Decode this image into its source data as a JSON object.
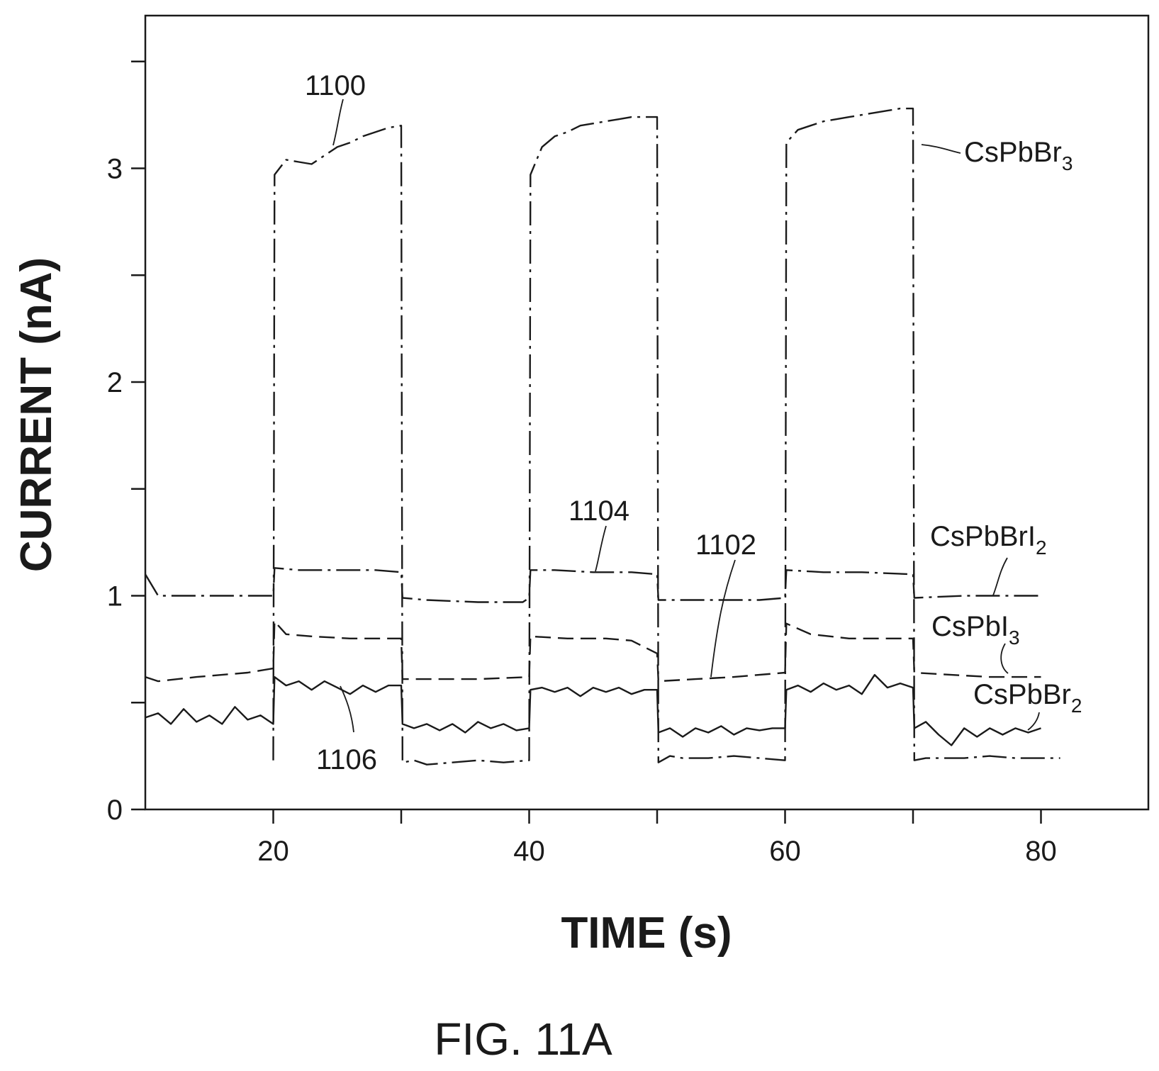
{
  "chart_data": {
    "type": "line",
    "xlabel": "TIME (s)",
    "ylabel": "CURRENT (nA)",
    "xlim": [
      10,
      88
    ],
    "ylim": [
      0,
      3.7
    ],
    "xticks": [
      20,
      40,
      60,
      80
    ],
    "xticks_minor": [
      30,
      50,
      70
    ],
    "yticks": [
      0,
      1,
      2,
      3
    ],
    "yticks_minor": [
      0.5,
      1.5,
      2.5,
      3.5
    ],
    "grid": false,
    "figure_label": "FIG. 11A",
    "reference_labels": [
      "1100",
      "1104",
      "1102",
      "1106"
    ],
    "series": [
      {
        "name": "CsPbBr3",
        "label_base": "CsPbBr",
        "label_sub": "3",
        "reference": "1100",
        "dash": "dash-dot",
        "x": [
          20,
          20.1,
          21,
          22,
          23,
          24,
          25,
          26,
          27,
          28,
          29,
          30,
          30.1,
          31,
          32,
          34,
          36,
          38,
          40,
          40.1,
          41,
          42,
          43,
          44,
          45,
          46,
          47,
          48,
          49,
          50,
          50.1,
          51,
          52,
          54,
          56,
          58,
          60,
          60.1,
          61,
          62,
          63,
          64,
          65,
          66,
          67,
          68,
          69,
          70,
          70.1,
          71,
          72,
          74,
          76,
          78,
          80,
          81.5
        ],
        "values": [
          0.23,
          2.97,
          3.04,
          3.03,
          3.02,
          3.06,
          3.1,
          3.12,
          3.15,
          3.17,
          3.19,
          3.2,
          0.22,
          0.23,
          0.21,
          0.22,
          0.23,
          0.22,
          0.23,
          2.97,
          3.1,
          3.15,
          3.17,
          3.2,
          3.21,
          3.22,
          3.23,
          3.24,
          3.24,
          3.24,
          0.22,
          0.25,
          0.24,
          0.24,
          0.25,
          0.24,
          0.23,
          3.12,
          3.18,
          3.2,
          3.22,
          3.23,
          3.24,
          3.25,
          3.26,
          3.27,
          3.28,
          3.28,
          0.23,
          0.24,
          0.24,
          0.24,
          0.25,
          0.24,
          0.24,
          0.24
        ]
      },
      {
        "name": "CsPbBrI2",
        "label_base": "CsPbBrI",
        "label_sub": "2",
        "reference": "1104",
        "dash": "dash-dot",
        "x": [
          10,
          11,
          14,
          18,
          20,
          20.1,
          22,
          25,
          28,
          30,
          30.1,
          32,
          36,
          39.5,
          40,
          40.1,
          42,
          45,
          48,
          50,
          50.1,
          54,
          58,
          60,
          60.1,
          63,
          66,
          70,
          70.1,
          74,
          80
        ],
        "values": [
          1.1,
          1.0,
          1.0,
          1.0,
          1.0,
          1.13,
          1.12,
          1.12,
          1.12,
          1.11,
          0.99,
          0.98,
          0.97,
          0.97,
          0.99,
          1.12,
          1.12,
          1.11,
          1.11,
          1.1,
          0.98,
          0.98,
          0.98,
          0.99,
          1.12,
          1.11,
          1.11,
          1.1,
          0.99,
          1.0,
          1.0
        ]
      },
      {
        "name": "CsPbI3",
        "label_base": "CsPbI",
        "label_sub": "3",
        "reference": "1102",
        "dash": "dashed",
        "x": [
          10,
          11,
          14,
          18,
          20,
          20.1,
          21,
          23,
          26,
          30,
          30.1,
          33,
          36,
          40,
          40.1,
          43,
          46,
          48,
          50,
          50.1,
          53,
          56,
          60,
          60.1,
          62,
          65,
          68,
          70,
          70.1,
          73,
          76,
          80
        ],
        "values": [
          0.62,
          0.6,
          0.62,
          0.64,
          0.66,
          0.88,
          0.82,
          0.81,
          0.8,
          0.8,
          0.61,
          0.61,
          0.61,
          0.62,
          0.81,
          0.8,
          0.8,
          0.79,
          0.73,
          0.6,
          0.61,
          0.62,
          0.64,
          0.87,
          0.82,
          0.8,
          0.8,
          0.8,
          0.64,
          0.63,
          0.62,
          0.62
        ]
      },
      {
        "name": "CsPbBr2",
        "label_base": "CsPbBr",
        "label_sub": "2",
        "reference": "1106",
        "dash": "solid",
        "x": [
          10,
          11,
          12,
          13,
          14,
          15,
          16,
          17,
          18,
          19,
          20,
          20.1,
          21,
          22,
          23,
          24,
          25,
          26,
          27,
          28,
          29,
          30,
          30.1,
          31,
          32,
          33,
          34,
          35,
          36,
          37,
          38,
          39,
          40,
          40.1,
          41,
          42,
          43,
          44,
          45,
          46,
          47,
          48,
          49,
          50,
          50.1,
          51,
          52,
          53,
          54,
          55,
          56,
          57,
          58,
          59,
          60,
          60.1,
          61,
          62,
          63,
          64,
          65,
          66,
          67,
          68,
          69,
          70,
          70.1,
          71,
          72,
          73,
          74,
          75,
          76,
          77,
          78,
          79,
          80
        ],
        "values": [
          0.43,
          0.45,
          0.4,
          0.47,
          0.41,
          0.44,
          0.4,
          0.48,
          0.42,
          0.44,
          0.4,
          0.62,
          0.58,
          0.6,
          0.56,
          0.6,
          0.57,
          0.54,
          0.58,
          0.55,
          0.58,
          0.58,
          0.4,
          0.38,
          0.4,
          0.37,
          0.4,
          0.36,
          0.41,
          0.38,
          0.4,
          0.37,
          0.38,
          0.56,
          0.57,
          0.55,
          0.57,
          0.53,
          0.57,
          0.55,
          0.57,
          0.54,
          0.56,
          0.56,
          0.36,
          0.38,
          0.34,
          0.38,
          0.36,
          0.39,
          0.35,
          0.38,
          0.37,
          0.38,
          0.38,
          0.56,
          0.58,
          0.55,
          0.59,
          0.56,
          0.58,
          0.54,
          0.63,
          0.57,
          0.59,
          0.57,
          0.38,
          0.41,
          0.35,
          0.3,
          0.38,
          0.34,
          0.38,
          0.35,
          0.38,
          0.36,
          0.38
        ]
      }
    ]
  }
}
